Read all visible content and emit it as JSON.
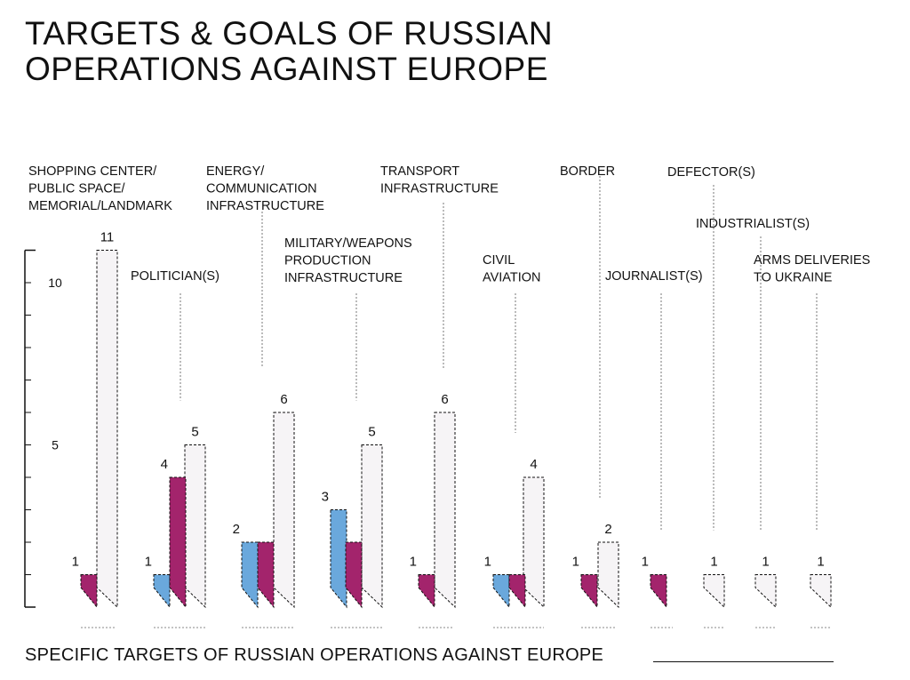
{
  "title": {
    "line1": "TARGETS & GOALS OF RUSSIAN",
    "line2": "OPERATIONS AGAINST EUROPE"
  },
  "footer": {
    "text": "SPECIFIC TARGETS OF RUSSIAN OPERATIONS AGAINST EUROPE"
  },
  "colors": {
    "series_a": "#6aa8dc",
    "series_b": "#a3246c",
    "total_fill": "#f6f4f6",
    "stroke": "#111111"
  },
  "chart_data": {
    "type": "bar",
    "title": "TARGETS & GOALS OF RUSSIAN OPERATIONS AGAINST EUROPE",
    "xlabel": "SPECIFIC TARGETS OF RUSSIAN OPERATIONS AGAINST EUROPE",
    "ylabel": "",
    "ylim": [
      0,
      11
    ],
    "yticks_labeled": [
      5,
      10
    ],
    "categories": [
      "SHOPPING CENTER/ PUBLIC SPACE/ MEMORIAL/LANDMARK",
      "POLITICIAN(S)",
      "ENERGY/ COMMUNICATION INFRASTRUCTURE",
      "MILITARY/WEAPONS PRODUCTION INFRASTRUCTURE",
      "TRANSPORT INFRASTRUCTURE",
      "CIVIL AVIATION",
      "BORDER",
      "JOURNALIST(S)",
      "DEFECTOR(S)",
      "INDUSTRIALIST(S)",
      "ARMS DELIVERIES TO UKRAINE"
    ],
    "category_lines": [
      [
        "SHOPPING CENTER/",
        "PUBLIC SPACE/",
        "MEMORIAL/LANDMARK"
      ],
      [
        "POLITICIAN(S)"
      ],
      [
        "ENERGY/",
        "COMMUNICATION",
        "INFRASTRUCTURE"
      ],
      [
        "MILITARY/WEAPONS",
        "PRODUCTION",
        "INFRASTRUCTURE"
      ],
      [
        "TRANSPORT",
        "INFRASTRUCTURE"
      ],
      [
        "CIVIL",
        "AVIATION"
      ],
      [
        "BORDER"
      ],
      [
        "JOURNALIST(S)"
      ],
      [
        "DEFECTOR(S)"
      ],
      [
        "INDUSTRIALIST(S)"
      ],
      [
        "ARMS DELIVERIES",
        "TO UKRAINE"
      ]
    ],
    "series": [
      {
        "name": "blue",
        "values": [
          null,
          1,
          2,
          3,
          null,
          1,
          null,
          null,
          null,
          null,
          null
        ]
      },
      {
        "name": "magenta",
        "values": [
          1,
          4,
          2,
          2,
          1,
          1,
          1,
          1,
          null,
          null,
          null
        ]
      },
      {
        "name": "total",
        "values": [
          11,
          5,
          6,
          5,
          6,
          4,
          2,
          null,
          1,
          1,
          1
        ]
      }
    ],
    "annotations": [
      {
        "category": 0,
        "series": "magenta",
        "text": "1"
      },
      {
        "category": 0,
        "series": "total",
        "text": "11"
      },
      {
        "category": 1,
        "series": "blue",
        "text": "1"
      },
      {
        "category": 1,
        "series": "magenta",
        "text": "4"
      },
      {
        "category": 1,
        "series": "total",
        "text": "5"
      },
      {
        "category": 2,
        "series": "blue",
        "text": "2"
      },
      {
        "category": 2,
        "series": "total",
        "text": "6"
      },
      {
        "category": 3,
        "series": "blue",
        "text": "3"
      },
      {
        "category": 3,
        "series": "total",
        "text": "5"
      },
      {
        "category": 4,
        "series": "magenta",
        "text": "1"
      },
      {
        "category": 4,
        "series": "total",
        "text": "6"
      },
      {
        "category": 5,
        "series": "blue",
        "text": "1"
      },
      {
        "category": 5,
        "series": "total",
        "text": "4"
      },
      {
        "category": 6,
        "series": "magenta",
        "text": "1"
      },
      {
        "category": 6,
        "series": "total",
        "text": "2"
      },
      {
        "category": 7,
        "series": "magenta",
        "text": "1"
      },
      {
        "category": 8,
        "series": "total",
        "text": "1"
      },
      {
        "category": 9,
        "series": "total",
        "text": "1"
      },
      {
        "category": 10,
        "series": "total",
        "text": "1"
      }
    ]
  }
}
